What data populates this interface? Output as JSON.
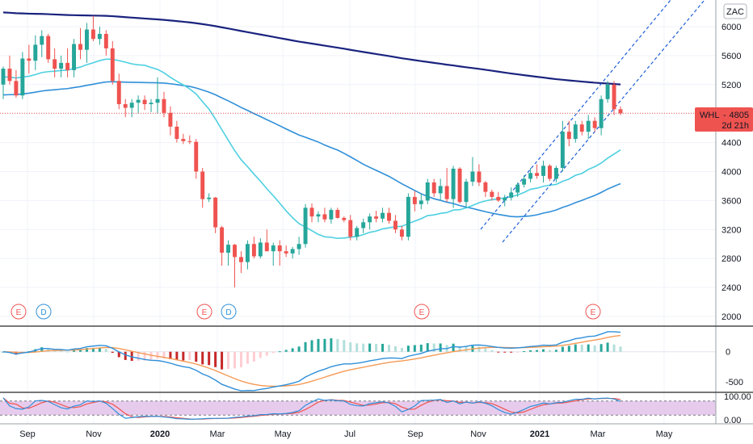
{
  "chart_data": {
    "type": "candlestick",
    "currency_badge": "ZAC",
    "symbol_tag": {
      "ticker": "WHL",
      "price": "4805",
      "countdown": "2d 21h",
      "color": "#ef5350"
    },
    "price_axis": {
      "ylim": [
        1750,
        6350
      ],
      "ticks": [
        "6000",
        "5600",
        "5200",
        "4800",
        "4400",
        "4000",
        "3600",
        "3200",
        "2800",
        "2400",
        "2000"
      ]
    },
    "time_axis": {
      "labels": [
        "Sep",
        "Nov",
        "2020",
        "Mar",
        "May",
        "Jul",
        "Sep",
        "Nov",
        "2021",
        "Mar",
        "May"
      ],
      "bold": [
        "2020",
        "2021"
      ]
    },
    "colors": {
      "up": "#26a69a",
      "down": "#ef5350",
      "ma_fast": "#4dd0e1",
      "ma_mid": "#2f8fd8",
      "ma_slow": "#1a237e",
      "channel": "#1e5fd8",
      "macd": "#2f8fd8",
      "signal": "#f59a55",
      "rsi_band": "#e1bee7"
    },
    "candles": [
      {
        "o": 5200,
        "h": 5450,
        "l": 5000,
        "c": 5420
      },
      {
        "o": 5420,
        "h": 5600,
        "l": 5200,
        "c": 5250
      },
      {
        "o": 5250,
        "h": 5400,
        "l": 5020,
        "c": 5050
      },
      {
        "o": 5050,
        "h": 5650,
        "l": 5000,
        "c": 5560
      },
      {
        "o": 5560,
        "h": 5750,
        "l": 5350,
        "c": 5530
      },
      {
        "o": 5530,
        "h": 5880,
        "l": 5400,
        "c": 5750
      },
      {
        "o": 5750,
        "h": 5950,
        "l": 5580,
        "c": 5870
      },
      {
        "o": 5870,
        "h": 5900,
        "l": 5500,
        "c": 5550
      },
      {
        "o": 5550,
        "h": 5700,
        "l": 5300,
        "c": 5420
      },
      {
        "o": 5420,
        "h": 5600,
        "l": 5300,
        "c": 5500
      },
      {
        "o": 5500,
        "h": 5700,
        "l": 5300,
        "c": 5400
      },
      {
        "o": 5400,
        "h": 5830,
        "l": 5300,
        "c": 5760
      },
      {
        "o": 5760,
        "h": 5980,
        "l": 5550,
        "c": 5680
      },
      {
        "o": 5680,
        "h": 6050,
        "l": 5500,
        "c": 5960
      },
      {
        "o": 5960,
        "h": 6150,
        "l": 5800,
        "c": 5830
      },
      {
        "o": 5830,
        "h": 6000,
        "l": 5750,
        "c": 5900
      },
      {
        "o": 5900,
        "h": 5950,
        "l": 5600,
        "c": 5700
      },
      {
        "o": 5700,
        "h": 5800,
        "l": 5200,
        "c": 5250
      },
      {
        "o": 5250,
        "h": 5350,
        "l": 4860,
        "c": 4930
      },
      {
        "o": 4930,
        "h": 5000,
        "l": 4750,
        "c": 4880
      },
      {
        "o": 4880,
        "h": 5000,
        "l": 4750,
        "c": 4950
      },
      {
        "o": 4950,
        "h": 5050,
        "l": 4800,
        "c": 4990
      },
      {
        "o": 4990,
        "h": 5050,
        "l": 4850,
        "c": 4930
      },
      {
        "o": 4930,
        "h": 5000,
        "l": 4820,
        "c": 4950
      },
      {
        "o": 4950,
        "h": 5300,
        "l": 4800,
        "c": 5000
      },
      {
        "o": 5000,
        "h": 5100,
        "l": 4750,
        "c": 4810
      },
      {
        "o": 4810,
        "h": 4900,
        "l": 4500,
        "c": 4620
      },
      {
        "o": 4620,
        "h": 4700,
        "l": 4400,
        "c": 4450
      },
      {
        "o": 4450,
        "h": 4520,
        "l": 4380,
        "c": 4420
      },
      {
        "o": 4420,
        "h": 4500,
        "l": 4380,
        "c": 4410
      },
      {
        "o": 4410,
        "h": 4450,
        "l": 3900,
        "c": 4000
      },
      {
        "o": 4000,
        "h": 4050,
        "l": 3500,
        "c": 3620
      },
      {
        "o": 3620,
        "h": 3700,
        "l": 3580,
        "c": 3640
      },
      {
        "o": 3640,
        "h": 3650,
        "l": 3150,
        "c": 3230
      },
      {
        "o": 3230,
        "h": 3250,
        "l": 2700,
        "c": 2880
      },
      {
        "o": 2880,
        "h": 3050,
        "l": 2700,
        "c": 2990
      },
      {
        "o": 2990,
        "h": 3000,
        "l": 2400,
        "c": 2820
      },
      {
        "o": 2820,
        "h": 2900,
        "l": 2600,
        "c": 2750
      },
      {
        "o": 2750,
        "h": 3050,
        "l": 2650,
        "c": 3000
      },
      {
        "o": 3000,
        "h": 3100,
        "l": 2800,
        "c": 2830
      },
      {
        "o": 2830,
        "h": 3080,
        "l": 2800,
        "c": 3020
      },
      {
        "o": 3020,
        "h": 3200,
        "l": 2900,
        "c": 2900
      },
      {
        "o": 2900,
        "h": 3020,
        "l": 2700,
        "c": 2980
      },
      {
        "o": 2980,
        "h": 3050,
        "l": 2700,
        "c": 2900
      },
      {
        "o": 2900,
        "h": 2980,
        "l": 2820,
        "c": 2870
      },
      {
        "o": 2870,
        "h": 2960,
        "l": 2800,
        "c": 2930
      },
      {
        "o": 2930,
        "h": 3100,
        "l": 2850,
        "c": 3000
      },
      {
        "o": 3000,
        "h": 3550,
        "l": 2950,
        "c": 3500
      },
      {
        "o": 3500,
        "h": 3560,
        "l": 3300,
        "c": 3380
      },
      {
        "o": 3380,
        "h": 3450,
        "l": 3300,
        "c": 3410
      },
      {
        "o": 3410,
        "h": 3500,
        "l": 3300,
        "c": 3340
      },
      {
        "o": 3340,
        "h": 3500,
        "l": 3280,
        "c": 3470
      },
      {
        "o": 3470,
        "h": 3500,
        "l": 3350,
        "c": 3360
      },
      {
        "o": 3360,
        "h": 3380,
        "l": 3300,
        "c": 3330
      },
      {
        "o": 3330,
        "h": 3400,
        "l": 3050,
        "c": 3100
      },
      {
        "o": 3100,
        "h": 3250,
        "l": 3050,
        "c": 3220
      },
      {
        "o": 3220,
        "h": 3350,
        "l": 3150,
        "c": 3300
      },
      {
        "o": 3300,
        "h": 3420,
        "l": 3200,
        "c": 3380
      },
      {
        "o": 3380,
        "h": 3460,
        "l": 3300,
        "c": 3350
      },
      {
        "o": 3350,
        "h": 3500,
        "l": 3300,
        "c": 3430
      },
      {
        "o": 3430,
        "h": 3500,
        "l": 3280,
        "c": 3320
      },
      {
        "o": 3320,
        "h": 3400,
        "l": 3150,
        "c": 3200
      },
      {
        "o": 3200,
        "h": 3250,
        "l": 3050,
        "c": 3100
      },
      {
        "o": 3100,
        "h": 3700,
        "l": 3050,
        "c": 3650
      },
      {
        "o": 3650,
        "h": 3730,
        "l": 3450,
        "c": 3550
      },
      {
        "o": 3550,
        "h": 3700,
        "l": 3480,
        "c": 3600
      },
      {
        "o": 3600,
        "h": 3900,
        "l": 3550,
        "c": 3850
      },
      {
        "o": 3850,
        "h": 3900,
        "l": 3650,
        "c": 3700
      },
      {
        "o": 3700,
        "h": 3900,
        "l": 3600,
        "c": 3800
      },
      {
        "o": 3800,
        "h": 4050,
        "l": 3580,
        "c": 3620
      },
      {
        "o": 3620,
        "h": 4080,
        "l": 3500,
        "c": 4040
      },
      {
        "o": 4040,
        "h": 4060,
        "l": 3560,
        "c": 3580
      },
      {
        "o": 3580,
        "h": 3900,
        "l": 3500,
        "c": 3860
      },
      {
        "o": 3860,
        "h": 4200,
        "l": 3800,
        "c": 4000
      },
      {
        "o": 4000,
        "h": 4100,
        "l": 3800,
        "c": 3850
      },
      {
        "o": 3850,
        "h": 3870,
        "l": 3650,
        "c": 3720
      },
      {
        "o": 3720,
        "h": 3750,
        "l": 3600,
        "c": 3650
      },
      {
        "o": 3650,
        "h": 3720,
        "l": 3580,
        "c": 3600
      },
      {
        "o": 3600,
        "h": 3680,
        "l": 3520,
        "c": 3640
      },
      {
        "o": 3640,
        "h": 3780,
        "l": 3600,
        "c": 3710
      },
      {
        "o": 3710,
        "h": 3850,
        "l": 3650,
        "c": 3820
      },
      {
        "o": 3820,
        "h": 3950,
        "l": 3780,
        "c": 3900
      },
      {
        "o": 3900,
        "h": 4050,
        "l": 3850,
        "c": 3980
      },
      {
        "o": 3980,
        "h": 4100,
        "l": 3900,
        "c": 3940
      },
      {
        "o": 3940,
        "h": 4150,
        "l": 3850,
        "c": 4080
      },
      {
        "o": 4080,
        "h": 4100,
        "l": 3870,
        "c": 3900
      },
      {
        "o": 3900,
        "h": 4080,
        "l": 3850,
        "c": 4050
      },
      {
        "o": 4050,
        "h": 4700,
        "l": 4000,
        "c": 4550
      },
      {
        "o": 4550,
        "h": 4700,
        "l": 4350,
        "c": 4450
      },
      {
        "o": 4450,
        "h": 4700,
        "l": 4400,
        "c": 4650
      },
      {
        "o": 4650,
        "h": 4700,
        "l": 4500,
        "c": 4550
      },
      {
        "o": 4550,
        "h": 4780,
        "l": 4450,
        "c": 4700
      },
      {
        "o": 4700,
        "h": 4750,
        "l": 4550,
        "c": 4600
      },
      {
        "o": 4600,
        "h": 5050,
        "l": 4500,
        "c": 5000
      },
      {
        "o": 5000,
        "h": 5250,
        "l": 4950,
        "c": 5200
      },
      {
        "o": 5200,
        "h": 5250,
        "l": 4780,
        "c": 4860
      },
      {
        "o": 4860,
        "h": 4900,
        "l": 4780,
        "c": 4805
      }
    ],
    "event_markers": [
      {
        "label": "E",
        "x": 23,
        "color": "#ef5350"
      },
      {
        "label": "D",
        "x": 54,
        "color": "#2f8fd8"
      },
      {
        "label": "E",
        "x": 253,
        "color": "#ef5350"
      },
      {
        "label": "D",
        "x": 283,
        "color": "#2f8fd8"
      },
      {
        "label": "E",
        "x": 522,
        "color": "#ef5350"
      },
      {
        "label": "E",
        "x": 734,
        "color": "#ef5350"
      }
    ],
    "macd_axis": {
      "ylim": [
        -650,
        400
      ],
      "ticks": [
        "0",
        "-500"
      ]
    },
    "rsi_axis": {
      "ylim": [
        -10,
        110
      ],
      "ticks": [
        "100.00",
        "0.00"
      ]
    }
  }
}
